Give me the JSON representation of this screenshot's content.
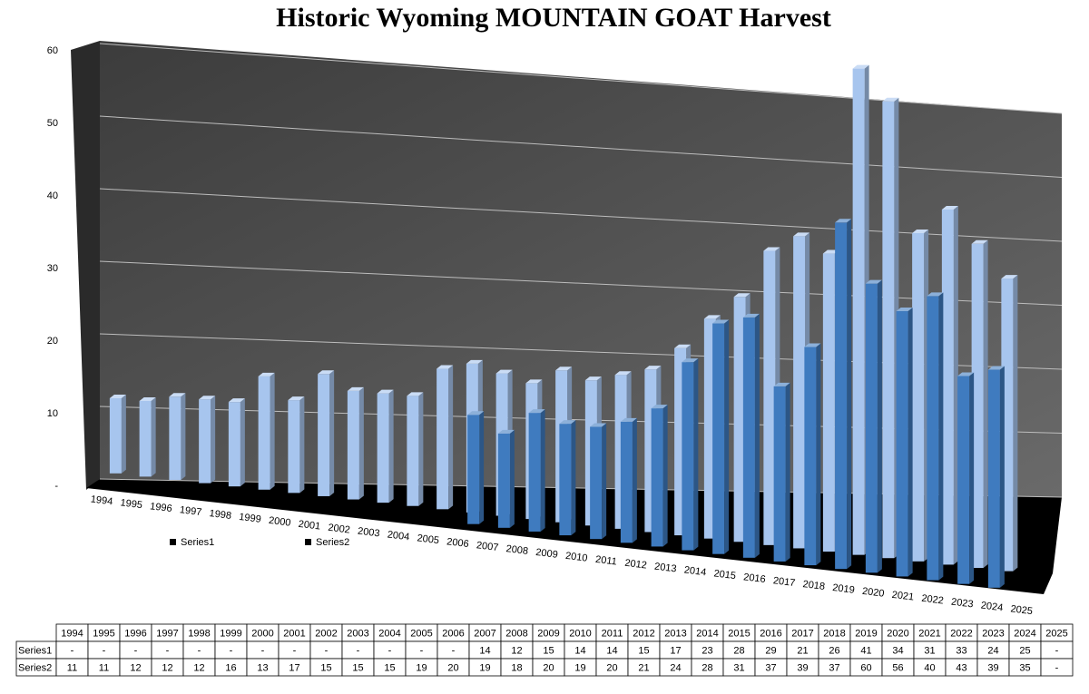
{
  "chart_data": {
    "type": "bar3d",
    "title": "Historic Wyoming MOUNTAIN GOAT Harvest",
    "categories": [
      "1994",
      "1995",
      "1996",
      "1997",
      "1998",
      "1999",
      "2000",
      "2001",
      "2002",
      "2003",
      "2004",
      "2005",
      "2006",
      "2007",
      "2008",
      "2009",
      "2010",
      "2011",
      "2012",
      "2013",
      "2014",
      "2015",
      "2016",
      "2017",
      "2018",
      "2019",
      "2020",
      "2021",
      "2022",
      "2023",
      "2024",
      "2025"
    ],
    "series": [
      {
        "name": "Series1",
        "color": "#3f7bbf",
        "values": [
          null,
          null,
          null,
          null,
          null,
          null,
          null,
          null,
          null,
          null,
          null,
          null,
          null,
          14,
          12,
          15,
          14,
          14,
          15,
          17,
          23,
          28,
          29,
          21,
          26,
          41,
          34,
          31,
          33,
          24,
          25,
          null
        ],
        "value_labels": [
          "-",
          "-",
          "-",
          "-",
          "-",
          "-",
          "-",
          "-",
          "-",
          "-",
          "-",
          "-",
          "-",
          "14",
          "12",
          "15",
          "14",
          "14",
          "15",
          "17",
          "23",
          "28",
          "29",
          "21",
          "26",
          "41",
          "34",
          "31",
          "33",
          "24",
          "25",
          "-"
        ]
      },
      {
        "name": "Series2",
        "color": "#a7c5ee",
        "values": [
          11,
          11,
          12,
          12,
          12,
          16,
          13,
          17,
          15,
          15,
          15,
          19,
          20,
          19,
          18,
          20,
          19,
          20,
          21,
          24,
          28,
          31,
          37,
          39,
          37,
          60,
          56,
          40,
          43,
          39,
          35,
          null
        ],
        "value_labels": [
          "11",
          "11",
          "12",
          "12",
          "12",
          "16",
          "13",
          "17",
          "15",
          "15",
          "15",
          "19",
          "20",
          "19",
          "18",
          "20",
          "19",
          "20",
          "21",
          "24",
          "28",
          "31",
          "37",
          "39",
          "37",
          "60",
          "56",
          "40",
          "43",
          "39",
          "35",
          "-"
        ]
      }
    ],
    "ylim": [
      0,
      60
    ],
    "yticks": [
      {
        "value": 0,
        "label": "-"
      },
      10,
      20,
      30,
      40,
      50,
      60
    ],
    "grid": true
  }
}
